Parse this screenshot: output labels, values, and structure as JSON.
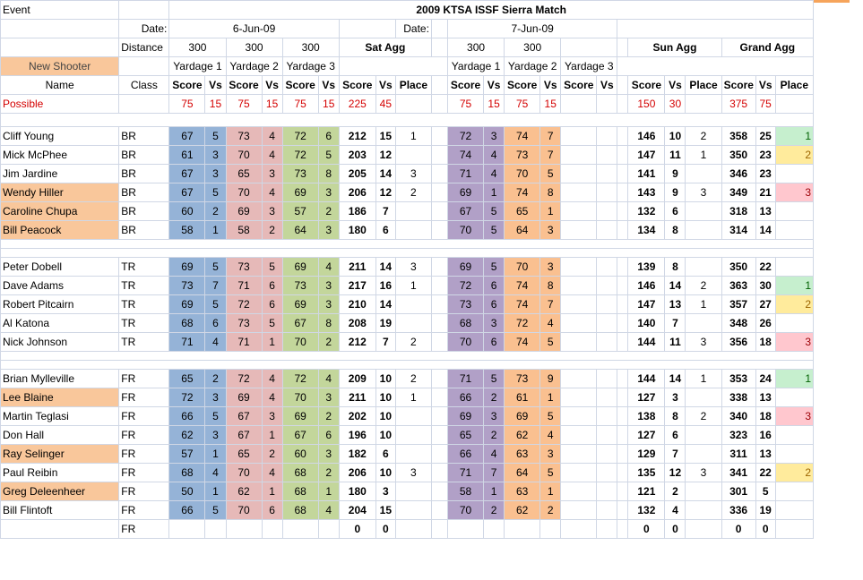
{
  "labels": {
    "event": "Event",
    "title": "2009 KTSA ISSF Sierra Match",
    "date": "Date:",
    "sat_date": "6-Jun-09",
    "sun_date": "7-Jun-09",
    "distance": "Distance",
    "d300": "300",
    "sat_agg": "Sat Agg",
    "sun_agg": "Sun Agg",
    "grand_agg": "Grand Agg",
    "new_shooter": "New Shooter",
    "y1": "Yardage 1",
    "y2": "Yardage 2",
    "y3": "Yardage 3",
    "name": "Name",
    "class": "Class",
    "score": "Score",
    "vs": "Vs",
    "place": "Place",
    "possible": "Possible"
  },
  "possible": {
    "sy1": "75",
    "vy1": "15",
    "sy2": "75",
    "vy2": "15",
    "sy3": "75",
    "vy3": "15",
    "sat_s": "225",
    "sat_v": "45",
    "suy1": "75",
    "suv1": "15",
    "suy2": "75",
    "suv2": "15",
    "sun_s": "150",
    "sun_v": "30",
    "gs": "375",
    "gv": "75"
  },
  "shooters": [
    {
      "name": "Cliff Young",
      "cls": "BR",
      "nh": false,
      "s1": "67",
      "v1": "5",
      "s2": "73",
      "v2": "4",
      "s3": "72",
      "v3": "6",
      "sat": "212",
      "satv": "15",
      "satp": "1",
      "u1": "72",
      "uv1": "3",
      "u2": "74",
      "uv2": "7",
      "sun": "146",
      "sunv": "10",
      "sunp": "2",
      "g": "358",
      "gv": "25",
      "gp": "1",
      "gpc": "lgreen"
    },
    {
      "name": "Mick McPhee",
      "cls": "BR",
      "nh": false,
      "s1": "61",
      "v1": "3",
      "s2": "70",
      "v2": "4",
      "s3": "72",
      "v3": "5",
      "sat": "203",
      "satv": "12",
      "satp": "",
      "u1": "74",
      "uv1": "4",
      "u2": "73",
      "uv2": "7",
      "sun": "147",
      "sunv": "11",
      "sunp": "1",
      "g": "350",
      "gv": "23",
      "gp": "2",
      "gpc": "lyel"
    },
    {
      "name": "Jim Jardine",
      "cls": "BR",
      "nh": false,
      "s1": "67",
      "v1": "3",
      "s2": "65",
      "v2": "3",
      "s3": "73",
      "v3": "8",
      "sat": "205",
      "satv": "14",
      "satp": "3",
      "u1": "71",
      "uv1": "4",
      "u2": "70",
      "uv2": "5",
      "sun": "141",
      "sunv": "9",
      "sunp": "",
      "g": "346",
      "gv": "23",
      "gp": "",
      "gpc": ""
    },
    {
      "name": "Wendy Hiller",
      "cls": "BR",
      "nh": true,
      "s1": "67",
      "v1": "5",
      "s2": "70",
      "v2": "4",
      "s3": "69",
      "v3": "3",
      "sat": "206",
      "satv": "12",
      "satp": "2",
      "u1": "69",
      "uv1": "1",
      "u2": "74",
      "uv2": "8",
      "sun": "143",
      "sunv": "9",
      "sunp": "3",
      "g": "349",
      "gv": "21",
      "gp": "3",
      "gpc": "lpink"
    },
    {
      "name": "Caroline Chupa",
      "cls": "BR",
      "nh": true,
      "s1": "60",
      "v1": "2",
      "s2": "69",
      "v2": "3",
      "s3": "57",
      "v3": "2",
      "sat": "186",
      "satv": "7",
      "satp": "",
      "u1": "67",
      "uv1": "5",
      "u2": "65",
      "uv2": "1",
      "sun": "132",
      "sunv": "6",
      "sunp": "",
      "g": "318",
      "gv": "13",
      "gp": "",
      "gpc": ""
    },
    {
      "name": "Bill Peacock",
      "cls": "BR",
      "nh": true,
      "s1": "58",
      "v1": "1",
      "s2": "58",
      "v2": "2",
      "s3": "64",
      "v3": "3",
      "sat": "180",
      "satv": "6",
      "satp": "",
      "u1": "70",
      "uv1": "5",
      "u2": "64",
      "uv2": "3",
      "sun": "134",
      "sunv": "8",
      "sunp": "",
      "g": "314",
      "gv": "14",
      "gp": "",
      "gpc": ""
    },
    null,
    null,
    {
      "name": "Peter Dobell",
      "cls": "TR",
      "nh": false,
      "s1": "69",
      "v1": "5",
      "s2": "73",
      "v2": "5",
      "s3": "69",
      "v3": "4",
      "sat": "211",
      "satv": "14",
      "satp": "3",
      "u1": "69",
      "uv1": "5",
      "u2": "70",
      "uv2": "3",
      "sun": "139",
      "sunv": "8",
      "sunp": "",
      "g": "350",
      "gv": "22",
      "gp": "",
      "gpc": ""
    },
    {
      "name": "Dave Adams",
      "cls": "TR",
      "nh": false,
      "s1": "73",
      "v1": "7",
      "s2": "71",
      "v2": "6",
      "s3": "73",
      "v3": "3",
      "sat": "217",
      "satv": "16",
      "satp": "1",
      "u1": "72",
      "uv1": "6",
      "u2": "74",
      "uv2": "8",
      "sun": "146",
      "sunv": "14",
      "sunp": "2",
      "g": "363",
      "gv": "30",
      "gp": "1",
      "gpc": "lgreen"
    },
    {
      "name": "Robert Pitcairn",
      "cls": "TR",
      "nh": false,
      "s1": "69",
      "v1": "5",
      "s2": "72",
      "v2": "6",
      "s3": "69",
      "v3": "3",
      "sat": "210",
      "satv": "14",
      "satp": "",
      "u1": "73",
      "uv1": "6",
      "u2": "74",
      "uv2": "7",
      "sun": "147",
      "sunv": "13",
      "sunp": "1",
      "g": "357",
      "gv": "27",
      "gp": "2",
      "gpc": "lyel"
    },
    {
      "name": "Al Katona",
      "cls": "TR",
      "nh": false,
      "s1": "68",
      "v1": "6",
      "s2": "73",
      "v2": "5",
      "s3": "67",
      "v3": "8",
      "sat": "208",
      "satv": "19",
      "satp": "",
      "u1": "68",
      "uv1": "3",
      "u2": "72",
      "uv2": "4",
      "sun": "140",
      "sunv": "7",
      "sunp": "",
      "g": "348",
      "gv": "26",
      "gp": "",
      "gpc": ""
    },
    {
      "name": "Nick Johnson",
      "cls": "TR",
      "nh": false,
      "s1": "71",
      "v1": "4",
      "s2": "71",
      "v2": "1",
      "s3": "70",
      "v3": "2",
      "sat": "212",
      "satv": "7",
      "satp": "2",
      "u1": "70",
      "uv1": "6",
      "u2": "74",
      "uv2": "5",
      "sun": "144",
      "sunv": "11",
      "sunp": "3",
      "g": "356",
      "gv": "18",
      "gp": "3",
      "gpc": "lpink"
    },
    null,
    null,
    {
      "name": "Brian Mylleville",
      "cls": "FR",
      "nh": false,
      "s1": "65",
      "v1": "2",
      "s2": "72",
      "v2": "4",
      "s3": "72",
      "v3": "4",
      "sat": "209",
      "satv": "10",
      "satp": "2",
      "u1": "71",
      "uv1": "5",
      "u2": "73",
      "uv2": "9",
      "sun": "144",
      "sunv": "14",
      "sunp": "1",
      "g": "353",
      "gv": "24",
      "gp": "1",
      "gpc": "lgreen"
    },
    {
      "name": "Lee Blaine",
      "cls": "FR",
      "nh": true,
      "s1": "72",
      "v1": "3",
      "s2": "69",
      "v2": "4",
      "s3": "70",
      "v3": "3",
      "sat": "211",
      "satv": "10",
      "satp": "1",
      "u1": "66",
      "uv1": "2",
      "u2": "61",
      "uv2": "1",
      "sun": "127",
      "sunv": "3",
      "sunp": "",
      "g": "338",
      "gv": "13",
      "gp": "",
      "gpc": ""
    },
    {
      "name": "Martin Teglasi",
      "cls": "FR",
      "nh": false,
      "s1": "66",
      "v1": "5",
      "s2": "67",
      "v2": "3",
      "s3": "69",
      "v3": "2",
      "sat": "202",
      "satv": "10",
      "satp": "",
      "u1": "69",
      "uv1": "3",
      "u2": "69",
      "uv2": "5",
      "sun": "138",
      "sunv": "8",
      "sunp": "2",
      "g": "340",
      "gv": "18",
      "gp": "3",
      "gpc": "lpink"
    },
    {
      "name": "Don Hall",
      "cls": "FR",
      "nh": false,
      "s1": "62",
      "v1": "3",
      "s2": "67",
      "v2": "1",
      "s3": "67",
      "v3": "6",
      "sat": "196",
      "satv": "10",
      "satp": "",
      "u1": "65",
      "uv1": "2",
      "u2": "62",
      "uv2": "4",
      "sun": "127",
      "sunv": "6",
      "sunp": "",
      "g": "323",
      "gv": "16",
      "gp": "",
      "gpc": ""
    },
    {
      "name": "Ray Selinger",
      "cls": "FR",
      "nh": true,
      "s1": "57",
      "v1": "1",
      "s2": "65",
      "v2": "2",
      "s3": "60",
      "v3": "3",
      "sat": "182",
      "satv": "6",
      "satp": "",
      "u1": "66",
      "uv1": "4",
      "u2": "63",
      "uv2": "3",
      "sun": "129",
      "sunv": "7",
      "sunp": "",
      "g": "311",
      "gv": "13",
      "gp": "",
      "gpc": ""
    },
    {
      "name": "Paul Reibin",
      "cls": "FR",
      "nh": false,
      "s1": "68",
      "v1": "4",
      "s2": "70",
      "v2": "4",
      "s3": "68",
      "v3": "2",
      "sat": "206",
      "satv": "10",
      "satp": "3",
      "u1": "71",
      "uv1": "7",
      "u2": "64",
      "uv2": "5",
      "sun": "135",
      "sunv": "12",
      "sunp": "3",
      "g": "341",
      "gv": "22",
      "gp": "2",
      "gpc": "lyel"
    },
    {
      "name": "Greg Deleenheer",
      "cls": "FR",
      "nh": true,
      "s1": "50",
      "v1": "1",
      "s2": "62",
      "v2": "1",
      "s3": "68",
      "v3": "1",
      "sat": "180",
      "satv": "3",
      "satp": "",
      "u1": "58",
      "uv1": "1",
      "u2": "63",
      "uv2": "1",
      "sun": "121",
      "sunv": "2",
      "sunp": "",
      "g": "301",
      "gv": "5",
      "gp": "",
      "gpc": ""
    },
    {
      "name": "Bill Flintoft",
      "cls": "FR",
      "nh": false,
      "s1": "66",
      "v1": "5",
      "s2": "70",
      "v2": "6",
      "s3": "68",
      "v3": "4",
      "sat": "204",
      "satv": "15",
      "satp": "",
      "u1": "70",
      "uv1": "2",
      "u2": "62",
      "uv2": "2",
      "sun": "132",
      "sunv": "4",
      "sunp": "",
      "g": "336",
      "gv": "19",
      "gp": "",
      "gpc": ""
    },
    {
      "name": "",
      "cls": "FR",
      "nh": false,
      "blankrow": true,
      "sat": "0",
      "satv": "0",
      "sun": "0",
      "sunv": "0",
      "g": "0",
      "gv": "0"
    }
  ]
}
